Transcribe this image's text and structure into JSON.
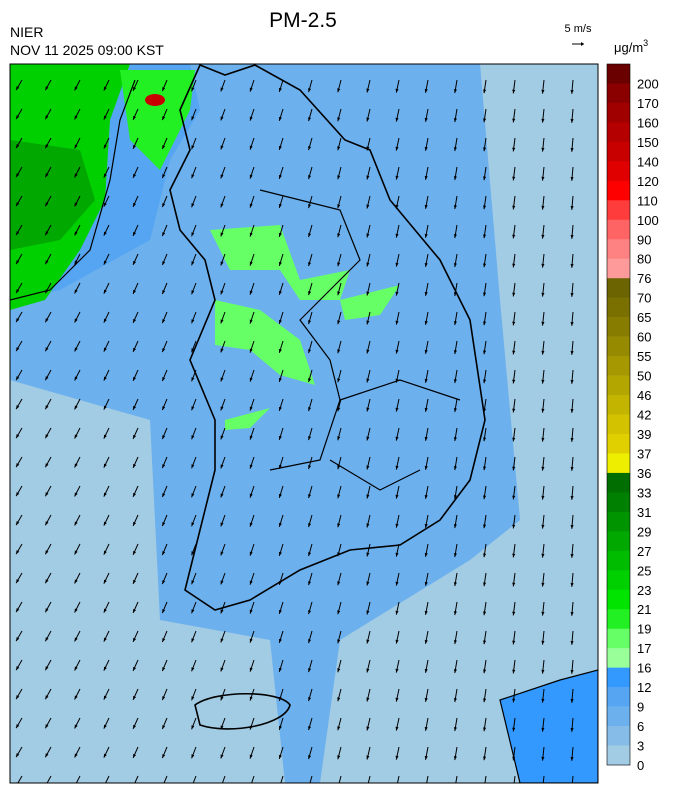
{
  "header": {
    "title": "PM-2.5",
    "source": "NIER",
    "time": "NOV 11 2025 09:00 KST"
  },
  "wind_scale": {
    "label": "5 m/s"
  },
  "colorbar": {
    "unit": "μg/m",
    "unit_exponent": "3",
    "levels": [
      "200",
      "170",
      "160",
      "150",
      "140",
      "120",
      "110",
      "100",
      "90",
      "80",
      "76",
      "70",
      "65",
      "60",
      "55",
      "50",
      "46",
      "42",
      "39",
      "37",
      "36",
      "33",
      "31",
      "29",
      "27",
      "25",
      "23",
      "21",
      "19",
      "17",
      "16",
      "12",
      "9",
      "6",
      "3",
      "0"
    ],
    "colors": [
      "#6b0000",
      "#8a0000",
      "#a00000",
      "#b40000",
      "#c80000",
      "#e00000",
      "#ff0000",
      "#ff3c3c",
      "#ff6464",
      "#ff8282",
      "#ff9a9a",
      "#6b6400",
      "#7a7000",
      "#877c00",
      "#968a00",
      "#a59800",
      "#b4a600",
      "#c3b400",
      "#d2c200",
      "#e1d000",
      "#eeee00",
      "#006e00",
      "#008000",
      "#009400",
      "#00a800",
      "#00bc00",
      "#00d000",
      "#00e400",
      "#22f022",
      "#66ff66",
      "#99ff99",
      "#3399ff",
      "#55a5f2",
      "#6cb0ee",
      "#85bce8",
      "#a2cbe4"
    ]
  }
}
